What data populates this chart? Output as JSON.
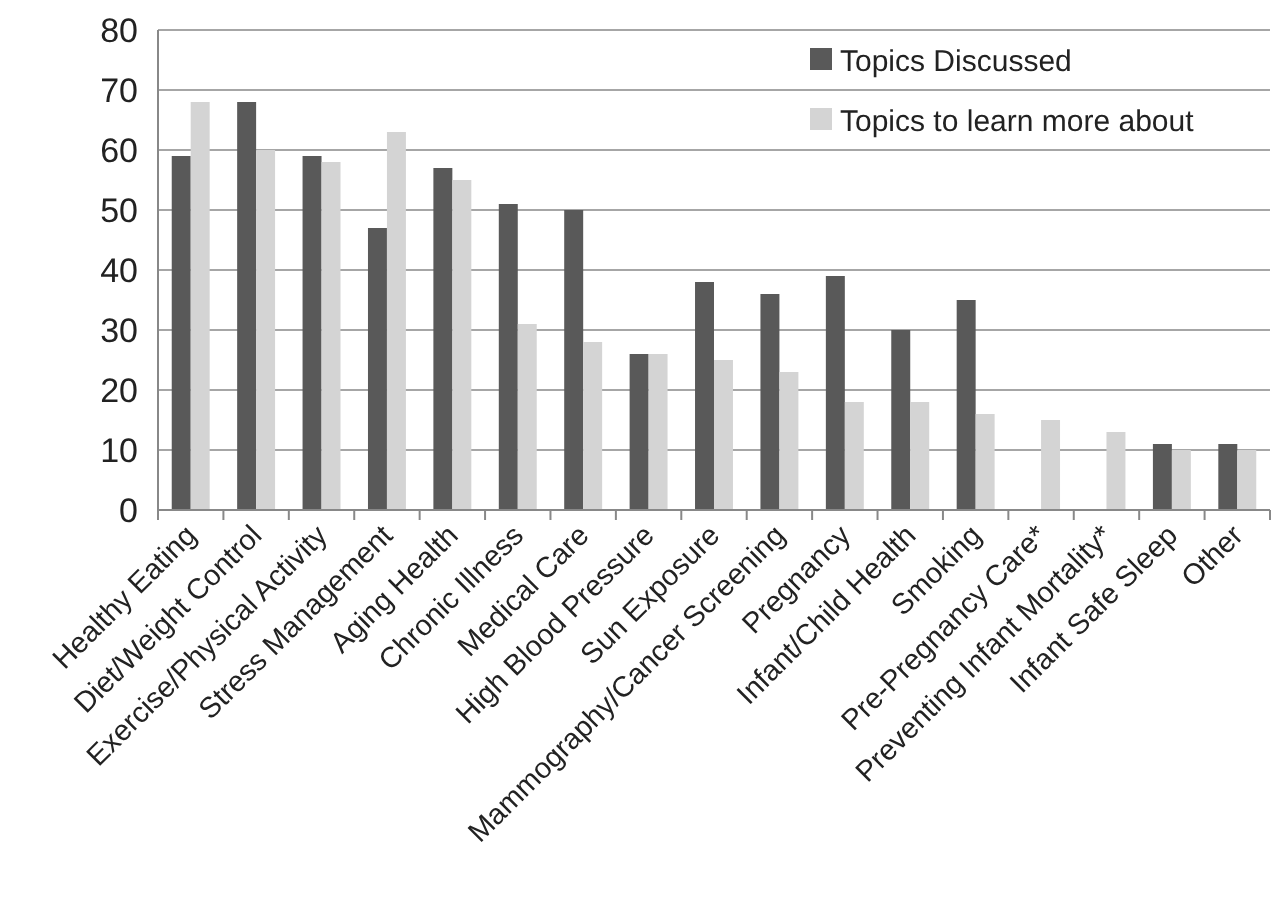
{
  "chart_data": {
    "type": "bar",
    "categories": [
      "Healthy Eating",
      "Diet/Weight Control",
      "Exercise/Physical Activity",
      "Stress Management",
      "Aging Health",
      "Chronic Illness",
      "Medical Care",
      "High Blood Pressure",
      "Sun Exposure",
      "Mammography/Cancer Screening",
      "Pregnancy",
      "Infant/Child Health",
      "Smoking",
      "Pre-Pregnancy Care*",
      "Preventing Infant Mortality*",
      "Infant Safe Sleep",
      "Other"
    ],
    "series": [
      {
        "name": "Topics Discussed",
        "color": "#595959",
        "values": [
          59,
          68,
          59,
          47,
          57,
          51,
          50,
          26,
          38,
          36,
          39,
          30,
          35,
          null,
          null,
          11,
          11
        ]
      },
      {
        "name": "Topics to learn more about",
        "color": "#d4d4d4",
        "values": [
          68,
          60,
          58,
          63,
          55,
          31,
          28,
          26,
          25,
          23,
          18,
          18,
          16,
          15,
          13,
          10,
          10
        ]
      }
    ],
    "ylim": [
      0,
      80
    ],
    "yticks": [
      0,
      10,
      20,
      30,
      40,
      50,
      60,
      70,
      80
    ],
    "grid": "y",
    "legend": "top right"
  }
}
